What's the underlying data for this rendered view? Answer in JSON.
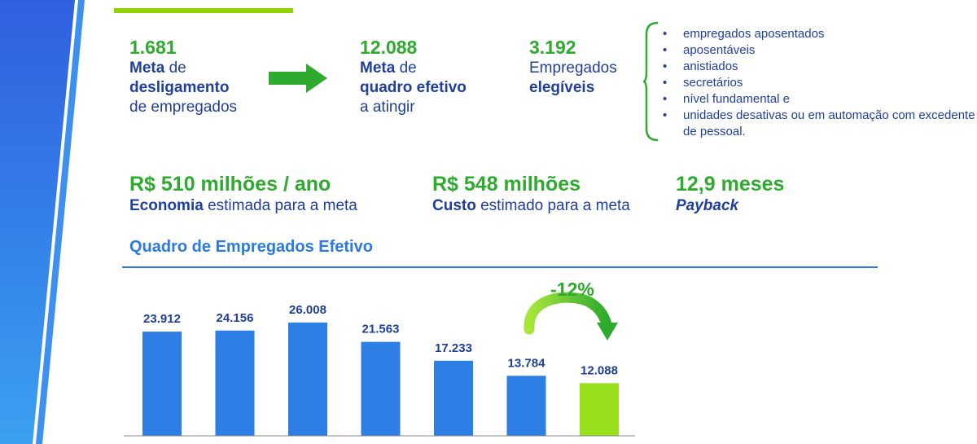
{
  "colors": {
    "blue_text": "#1f3f99",
    "green_text": "#2eaa2e",
    "accent_blue": "#2b7ae0",
    "bar_blue": "#2d7ee5",
    "bar_green": "#99e01c"
  },
  "stats": [
    {
      "num": "1.681",
      "l1": "Meta",
      "l1b": " de",
      "l2": "desligamento",
      "l3": "de empregados"
    },
    {
      "num": "12.088",
      "l1": "Meta",
      "l1b": " de",
      "l2": "quadro efetivo",
      "l3": "a atingir"
    },
    {
      "num": "3.192",
      "l1": "Empregados",
      "l2": "elegíveis"
    }
  ],
  "bullets": [
    "empregados aposentados",
    "aposentáveis",
    "anistiados",
    "secretários",
    " nível fundamental e",
    "unidades desativas ou em automação com excedente de pessoal."
  ],
  "metrics": [
    {
      "big": "R$ 510 milhões / ano",
      "bold": "Economia",
      "rest": " estimada para a meta"
    },
    {
      "big": "R$ 548 milhões",
      "bold": "Custo",
      "rest": " estimado para a meta"
    },
    {
      "big": "12,9 meses",
      "italic": "Payback"
    }
  ],
  "section_title": "Quadro de Empregados Efetivo",
  "chart_data": {
    "type": "bar",
    "values": [
      23912,
      24156,
      26008,
      21563,
      17233,
      13784,
      12088
    ],
    "value_labels": [
      "23.912",
      "24.156",
      "26.008",
      "21.563",
      "17.233",
      "13.784",
      "12.088"
    ],
    "highlight_index": 6,
    "annotation": "-12%"
  }
}
